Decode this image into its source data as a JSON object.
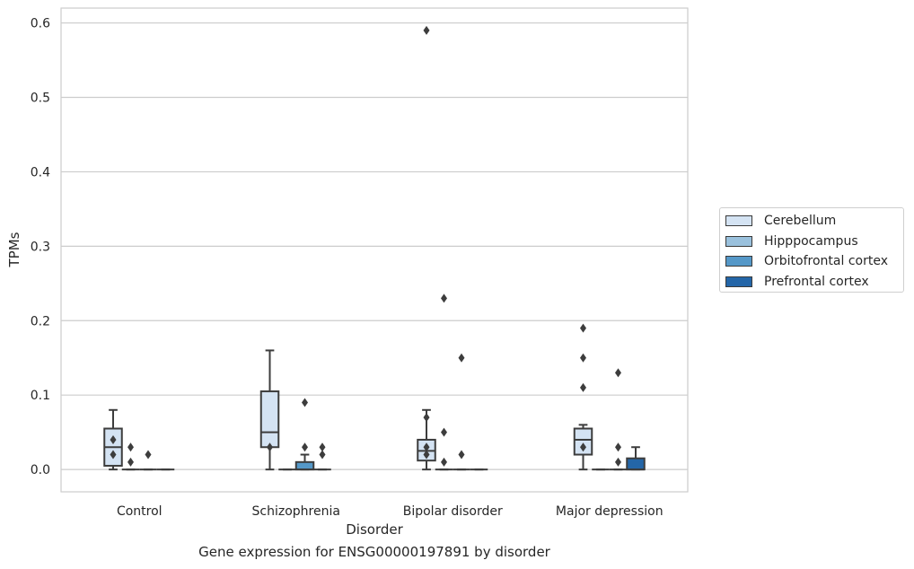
{
  "chart_data": {
    "type": "box",
    "title": "",
    "caption": "Gene expression for ENSG00000197891 by disorder",
    "xlabel": "Disorder",
    "ylabel": "TPMs",
    "ylim": [
      -0.03,
      0.62
    ],
    "yticks": [
      0.0,
      0.1,
      0.2,
      0.3,
      0.4,
      0.5,
      0.6
    ],
    "ytick_labels": [
      "0.0",
      "0.1",
      "0.2",
      "0.3",
      "0.4",
      "0.5",
      "0.6"
    ],
    "grid": "horizontal",
    "legend_position": "right",
    "categories": [
      "Control",
      "Schizophrenia",
      "Bipolar disorder",
      "Major depression"
    ],
    "series": [
      {
        "name": "Cerebellum",
        "color": "#d4e3f3",
        "boxes": [
          {
            "whislo": 0.0,
            "q1": 0.005,
            "med": 0.03,
            "q3": 0.055,
            "whishi": 0.08,
            "fliers": [
              0.04,
              0.02
            ]
          },
          {
            "whislo": 0.0,
            "q1": 0.03,
            "med": 0.05,
            "q3": 0.105,
            "whishi": 0.16,
            "fliers": [
              0.03
            ]
          },
          {
            "whislo": 0.0,
            "q1": 0.012,
            "med": 0.025,
            "q3": 0.04,
            "whishi": 0.08,
            "fliers": [
              0.59,
              0.07,
              0.03,
              0.02
            ]
          },
          {
            "whislo": 0.0,
            "q1": 0.02,
            "med": 0.04,
            "q3": 0.055,
            "whishi": 0.06,
            "fliers": [
              0.19,
              0.15,
              0.11,
              0.03
            ]
          }
        ]
      },
      {
        "name": "Hipppocampus",
        "color": "#9ac1dd",
        "boxes": [
          {
            "whislo": 0.0,
            "q1": 0.0,
            "med": 0.0,
            "q3": 0.0,
            "whishi": 0.0,
            "fliers": [
              0.03,
              0.01
            ]
          },
          {
            "whislo": 0.0,
            "q1": 0.0,
            "med": 0.0,
            "q3": 0.0,
            "whishi": 0.0,
            "fliers": []
          },
          {
            "whislo": 0.0,
            "q1": 0.0,
            "med": 0.0,
            "q3": 0.0,
            "whishi": 0.0,
            "fliers": [
              0.23,
              0.05,
              0.01
            ]
          },
          {
            "whislo": 0.0,
            "q1": 0.0,
            "med": 0.0,
            "q3": 0.0,
            "whishi": 0.0,
            "fliers": []
          }
        ]
      },
      {
        "name": "Orbitofrontal cortex",
        "color": "#5598c8",
        "boxes": [
          {
            "whislo": 0.0,
            "q1": 0.0,
            "med": 0.0,
            "q3": 0.0,
            "whishi": 0.0,
            "fliers": [
              0.02
            ]
          },
          {
            "whislo": 0.0,
            "q1": 0.0,
            "med": 0.0,
            "q3": 0.01,
            "whishi": 0.02,
            "fliers": [
              0.09,
              0.03
            ]
          },
          {
            "whislo": 0.0,
            "q1": 0.0,
            "med": 0.0,
            "q3": 0.0,
            "whishi": 0.0,
            "fliers": [
              0.15,
              0.02
            ]
          },
          {
            "whislo": 0.0,
            "q1": 0.0,
            "med": 0.0,
            "q3": 0.0,
            "whishi": 0.0,
            "fliers": [
              0.13,
              0.03,
              0.01
            ]
          }
        ]
      },
      {
        "name": "Prefrontal cortex",
        "color": "#2466a8",
        "boxes": [
          {
            "whislo": 0.0,
            "q1": 0.0,
            "med": 0.0,
            "q3": 0.0,
            "whishi": 0.0,
            "fliers": []
          },
          {
            "whislo": 0.0,
            "q1": 0.0,
            "med": 0.0,
            "q3": 0.0,
            "whishi": 0.0,
            "fliers": [
              0.03,
              0.02
            ]
          },
          {
            "whislo": 0.0,
            "q1": 0.0,
            "med": 0.0,
            "q3": 0.0,
            "whishi": 0.0,
            "fliers": []
          },
          {
            "whislo": 0.0,
            "q1": 0.0,
            "med": 0.0,
            "q3": 0.015,
            "whishi": 0.03,
            "fliers": []
          }
        ]
      }
    ]
  }
}
